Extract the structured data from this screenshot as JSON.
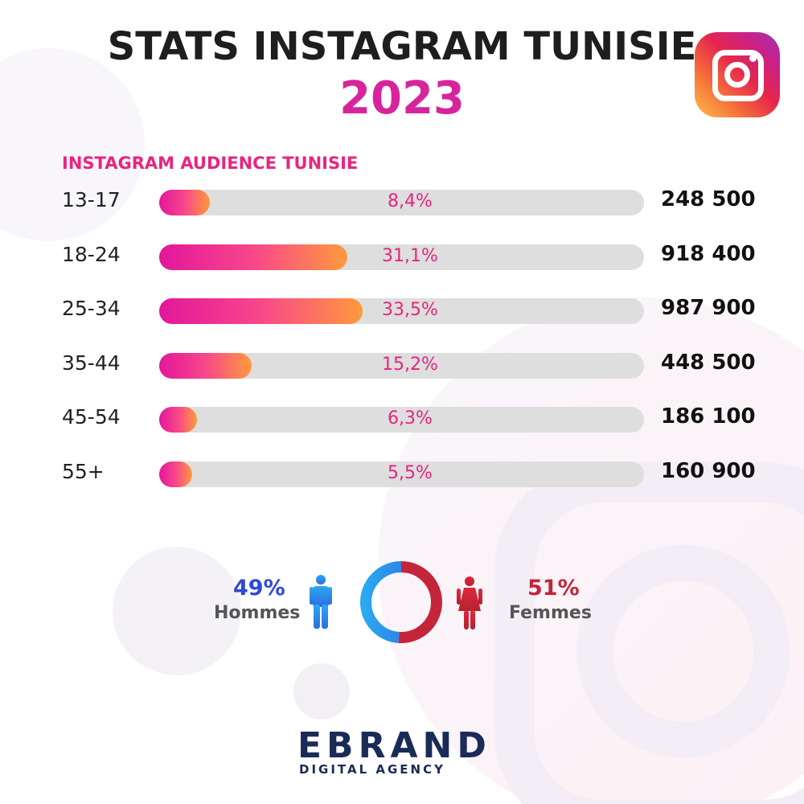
{
  "header": {
    "title": "STATS INSTAGRAM TUNISIE",
    "year": "2023"
  },
  "colors": {
    "title": "#1e1e1e",
    "year": "#d8249c",
    "accent_pink": "#e8257f",
    "bar_gradient_start": "#e3169b",
    "bar_gradient_end": "#ff9a3c",
    "bar_track": "#dedede",
    "men": "#2d49d6",
    "women": "#c5253a"
  },
  "logo_icon": "instagram-icon",
  "chart_data": {
    "type": "bar",
    "title": "INSTAGRAM AUDIENCE TUNISIE",
    "orientation": "horizontal",
    "categories": [
      "13-17",
      "18-24",
      "25-34",
      "35-44",
      "45-54",
      "55+"
    ],
    "values": [
      8.4,
      31.1,
      33.5,
      15.2,
      6.3,
      5.5
    ],
    "value_labels": [
      "8,4%",
      "31,1%",
      "33,5%",
      "15,2%",
      "6,3%",
      "5,5%"
    ],
    "counts": [
      "248 500",
      "918 400",
      "987 900",
      "448 500",
      "186 100",
      "160 900"
    ],
    "xlim": [
      0,
      80
    ],
    "grid": false
  },
  "gender": {
    "type": "pie",
    "men": {
      "value": 49,
      "percent_label": "49%",
      "label": "Hommes",
      "icon": "man-icon"
    },
    "women": {
      "value": 51,
      "percent_label": "51%",
      "label": "Femmes",
      "icon": "woman-icon"
    }
  },
  "brand": {
    "name": "EBRAND",
    "tagline": "DIGITAL AGENCY"
  }
}
